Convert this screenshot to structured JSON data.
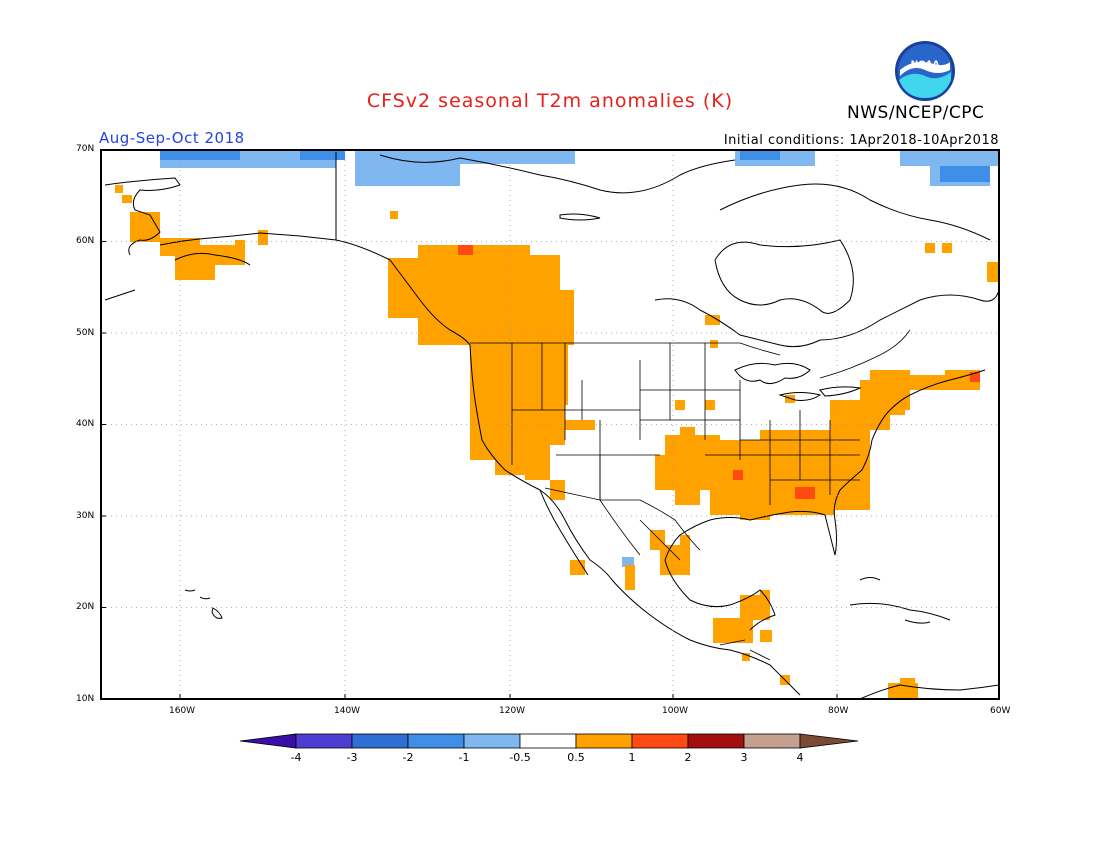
{
  "header": {
    "title": "CFSv2 seasonal T2m anomalies (K)",
    "organization": "NWS/NCEP/CPC",
    "logo_text": "NOAA",
    "season": "Aug-Sep-Oct 2018",
    "initial_conditions": "Initial conditions: 1Apr2018-10Apr2018"
  },
  "map": {
    "region": "North America",
    "lat_labels": [
      "70N",
      "60N",
      "50N",
      "40N",
      "30N",
      "20N",
      "10N"
    ],
    "lon_labels": [
      "160W",
      "140W",
      "120W",
      "100W",
      "80W",
      "60W"
    ],
    "gridlines": "dotted",
    "variable": "2m temperature anomaly"
  },
  "colorbar": {
    "labels": [
      "-4",
      "-3",
      "-2",
      "-1",
      "-0.5",
      "0.5",
      "1",
      "2",
      "3",
      "4"
    ],
    "colors": [
      "#3a0fa8",
      "#4d3ed1",
      "#2f6fd4",
      "#3f8ee8",
      "#7fb8f0",
      "#ffffff",
      "#ffa200",
      "#ff4a12",
      "#a10f0f",
      "#c4a08e",
      "#7a4a35"
    ]
  },
  "colors": {
    "warm_anomaly": "#ffa200",
    "strong_warm": "#ff4a12",
    "cool_anomaly": "#7fb8f0",
    "strong_cool": "#3f8ee8",
    "title_red": "#e8201c",
    "season_blue": "#2244dd"
  }
}
